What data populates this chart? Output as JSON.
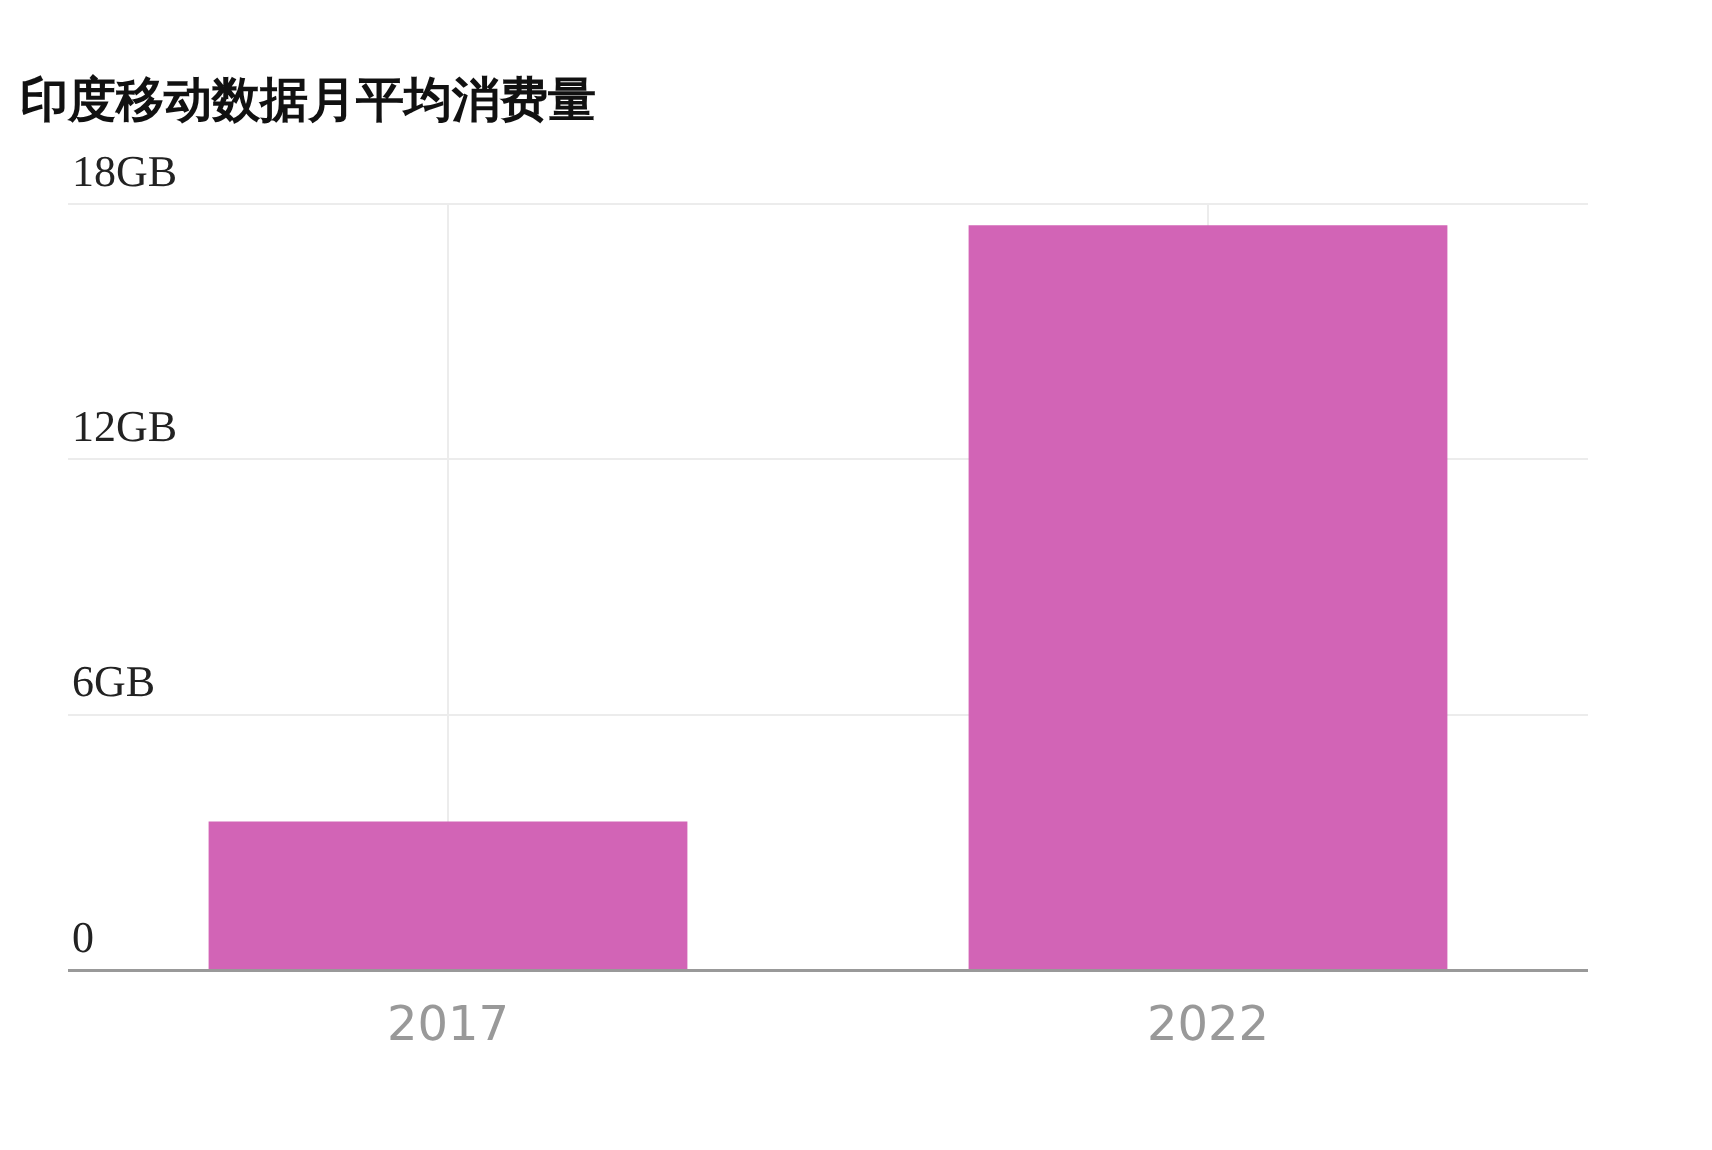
{
  "chart_data": {
    "type": "bar",
    "title": "印度移动数据月平均消费量",
    "categories": [
      "2017",
      "2022"
    ],
    "values": [
      3.5,
      17.5
    ],
    "color": "#d264b6",
    "ylim": [
      0,
      18
    ],
    "yticks": [
      {
        "value": 0,
        "label": "0"
      },
      {
        "value": 6,
        "label": "6GB"
      },
      {
        "value": 12,
        "label": "12GB"
      },
      {
        "value": 18,
        "label": "18GB"
      }
    ],
    "grid": true
  }
}
